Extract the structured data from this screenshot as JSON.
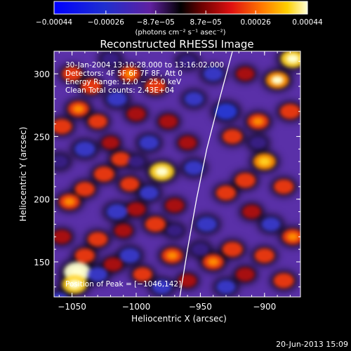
{
  "chart_data": {
    "type": "heatmap",
    "title": "Reconstructed RHESSI Image",
    "xlabel": "Heliocentric X (arcsec)",
    "ylabel": "Heliocentric Y (arcsec)",
    "xlim": [
      -1064,
      -872
    ],
    "ylim": [
      122,
      318
    ],
    "x_ticks": [
      -1050,
      -1000,
      -950,
      -900
    ],
    "x_tick_labels": [
      "−1050",
      "−1000",
      "−950",
      "−900"
    ],
    "y_ticks": [
      150,
      200,
      250,
      300
    ],
    "y_tick_labels": [
      "150",
      "200",
      "250",
      "300"
    ],
    "colorbar": {
      "range": [
        -0.00044,
        0.00044
      ],
      "ticks": [
        -0.00044,
        -0.00026,
        -8.7e-05,
        8.7e-05,
        0.00026,
        0.00044
      ],
      "tick_labels": [
        "−0.00044",
        "−0.00026",
        "−8.7e−05",
        "8.7e−05",
        "0.00026",
        "0.00044"
      ],
      "units": "(photons cm⁻² s⁻¹ asec⁻²)"
    },
    "info_lines": [
      "30-Jan-2004 13:10:28.000 to 13:16:02.000",
      "Detectors: 4F 5F 6F 7F 8F, Att 0",
      "Energy Range: 12.0 − 25.0 keV",
      "Clean     Total counts: 2.43E+04"
    ],
    "peak_label": "Position of Peak = [−1046,142]",
    "peak": {
      "x": -1046,
      "y": 142
    },
    "limb_curve": [
      {
        "x": -966,
        "y": 122
      },
      {
        "x": -960,
        "y": 160
      },
      {
        "x": -953,
        "y": 200
      },
      {
        "x": -945,
        "y": 240
      },
      {
        "x": -935,
        "y": 280
      },
      {
        "x": -925,
        "y": 318
      }
    ],
    "sources": [
      {
        "x": -1046,
        "y": 142,
        "value": 0.00044
      },
      {
        "x": -1048,
        "y": 132,
        "value": 0.00038
      },
      {
        "x": -1040,
        "y": 155,
        "value": 0.00022
      },
      {
        "x": -1030,
        "y": 168,
        "value": 0.00022
      },
      {
        "x": -1018,
        "y": 148,
        "value": 0.00018
      },
      {
        "x": -1052,
        "y": 198,
        "value": 0.00026
      },
      {
        "x": -1040,
        "y": 208,
        "value": 0.00022
      },
      {
        "x": -1025,
        "y": 220,
        "value": 0.00024
      },
      {
        "x": -1012,
        "y": 232,
        "value": 0.0002
      },
      {
        "x": -1058,
        "y": 258,
        "value": 0.00024
      },
      {
        "x": -1045,
        "y": 272,
        "value": 0.00026
      },
      {
        "x": -1030,
        "y": 262,
        "value": 0.0002
      },
      {
        "x": -1050,
        "y": 300,
        "value": 0.00022
      },
      {
        "x": -1035,
        "y": 290,
        "value": 0.00024
      },
      {
        "x": -1005,
        "y": 300,
        "value": 0.00026
      },
      {
        "x": -1000,
        "y": 268,
        "value": 0.00018
      },
      {
        "x": -985,
        "y": 290,
        "value": 0.00024
      },
      {
        "x": -975,
        "y": 262,
        "value": 0.00018
      },
      {
        "x": -980,
        "y": 222,
        "value": 0.00038
      },
      {
        "x": -1005,
        "y": 212,
        "value": 0.0002
      },
      {
        "x": -1000,
        "y": 192,
        "value": 0.00018
      },
      {
        "x": -985,
        "y": 180,
        "value": 0.00024
      },
      {
        "x": -970,
        "y": 195,
        "value": 0.00018
      },
      {
        "x": -972,
        "y": 155,
        "value": 0.00026
      },
      {
        "x": -1010,
        "y": 175,
        "value": 0.00016
      },
      {
        "x": -995,
        "y": 140,
        "value": 0.0002
      },
      {
        "x": -960,
        "y": 135,
        "value": 0.00016
      },
      {
        "x": -940,
        "y": 150,
        "value": 0.00026
      },
      {
        "x": -925,
        "y": 160,
        "value": 0.00024
      },
      {
        "x": -915,
        "y": 140,
        "value": 0.00018
      },
      {
        "x": -900,
        "y": 155,
        "value": 0.00022
      },
      {
        "x": -885,
        "y": 135,
        "value": 0.00024
      },
      {
        "x": -878,
        "y": 170,
        "value": 0.00026
      },
      {
        "x": -930,
        "y": 205,
        "value": 0.00022
      },
      {
        "x": -915,
        "y": 215,
        "value": 0.00024
      },
      {
        "x": -900,
        "y": 230,
        "value": 0.0003
      },
      {
        "x": -885,
        "y": 210,
        "value": 0.00022
      },
      {
        "x": -910,
        "y": 190,
        "value": 0.00018
      },
      {
        "x": -925,
        "y": 250,
        "value": 0.00022
      },
      {
        "x": -905,
        "y": 262,
        "value": 0.00026
      },
      {
        "x": -880,
        "y": 270,
        "value": 0.00024
      },
      {
        "x": -890,
        "y": 295,
        "value": 0.00032
      },
      {
        "x": -878,
        "y": 312,
        "value": 0.00036
      },
      {
        "x": -915,
        "y": 300,
        "value": 0.00016
      },
      {
        "x": -960,
        "y": 245,
        "value": 0.00016
      },
      {
        "x": -1058,
        "y": 170,
        "value": 0.00018
      },
      {
        "x": -1020,
        "y": 245,
        "value": 0.00014
      },
      {
        "x": -1040,
        "y": 240,
        "value": -0.00026
      },
      {
        "x": -1015,
        "y": 280,
        "value": -0.00024
      },
      {
        "x": -990,
        "y": 245,
        "value": -0.00022
      },
      {
        "x": -990,
        "y": 205,
        "value": -0.0002
      },
      {
        "x": -1015,
        "y": 190,
        "value": -0.00026
      },
      {
        "x": -1030,
        "y": 140,
        "value": -0.00022
      },
      {
        "x": -1005,
        "y": 155,
        "value": -0.00024
      },
      {
        "x": -980,
        "y": 130,
        "value": -0.00022
      },
      {
        "x": -955,
        "y": 225,
        "value": -0.00022
      },
      {
        "x": -945,
        "y": 180,
        "value": -0.00024
      },
      {
        "x": -930,
        "y": 270,
        "value": -0.0003
      },
      {
        "x": -940,
        "y": 300,
        "value": -0.00022
      },
      {
        "x": -955,
        "y": 280,
        "value": -0.0002
      },
      {
        "x": -905,
        "y": 245,
        "value": -0.00014
      },
      {
        "x": -895,
        "y": 180,
        "value": -0.0002
      },
      {
        "x": -930,
        "y": 130,
        "value": -0.0002
      },
      {
        "x": -1060,
        "y": 230,
        "value": -0.00018
      },
      {
        "x": -1060,
        "y": 120,
        "value": -0.0002
      },
      {
        "x": -960,
        "y": 310,
        "value": -0.00018
      },
      {
        "x": -1020,
        "y": 312,
        "value": -0.00016
      },
      {
        "x": -1000,
        "y": 230,
        "value": -0.00012
      },
      {
        "x": -970,
        "y": 175,
        "value": -0.00012
      },
      {
        "x": -950,
        "y": 160,
        "value": -0.00016
      }
    ]
  },
  "footer": {
    "timestamp": "20-Jun-2013 15:09"
  }
}
